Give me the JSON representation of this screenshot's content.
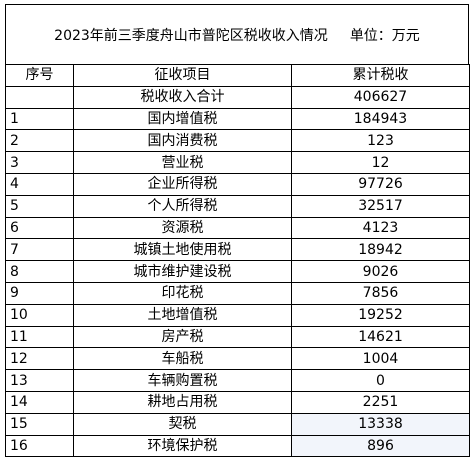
{
  "title": {
    "main": "2023年前三季度舟山市普陀区税收收入情况",
    "unit": "单位：万元"
  },
  "headers": {
    "index": "序号",
    "item": "征收项目",
    "value": "累计税收"
  },
  "total": {
    "index": "",
    "item": "税收收入合计",
    "value": "406627"
  },
  "rows": [
    {
      "index": "1",
      "item": "国内增值税",
      "value": "184943"
    },
    {
      "index": "2",
      "item": "国内消费税",
      "value": "123"
    },
    {
      "index": "3",
      "item": "营业税",
      "value": "12"
    },
    {
      "index": "4",
      "item": "企业所得税",
      "value": "97726"
    },
    {
      "index": "5",
      "item": "个人所得税",
      "value": "32517"
    },
    {
      "index": "6",
      "item": "资源税",
      "value": "4123"
    },
    {
      "index": "7",
      "item": "城镇土地使用税",
      "value": "18942"
    },
    {
      "index": "8",
      "item": "城市维护建设税",
      "value": "9026"
    },
    {
      "index": "9",
      "item": "印花税",
      "value": "7856"
    },
    {
      "index": "10",
      "item": "土地增值税",
      "value": "19252"
    },
    {
      "index": "11",
      "item": "房产税",
      "value": "14621"
    },
    {
      "index": "12",
      "item": "车船税",
      "value": "1004"
    },
    {
      "index": "13",
      "item": "车辆购置税",
      "value": "0"
    },
    {
      "index": "14",
      "item": "耕地占用税",
      "value": "2251"
    },
    {
      "index": "15",
      "item": "契税",
      "value": "13338"
    },
    {
      "index": "16",
      "item": "环境保护税",
      "value": "896"
    }
  ],
  "colors": {
    "border": "#000000",
    "highlight_cell": "#f2f5fb"
  }
}
